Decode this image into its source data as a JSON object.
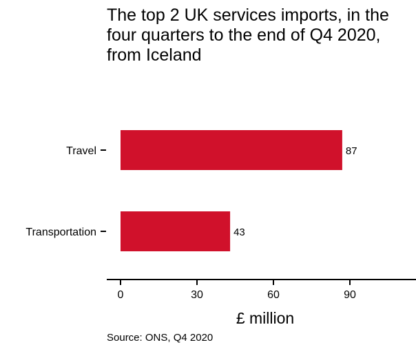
{
  "chart_data": {
    "type": "bar",
    "orientation": "horizontal",
    "title": "The top 2 UK services imports, in the four quarters to the end of Q4 2020, from Iceland",
    "categories": [
      "Travel",
      "Transportation"
    ],
    "values": [
      87,
      43
    ],
    "data_labels": [
      "87",
      "43"
    ],
    "xlabel": "£ million",
    "ylabel": "",
    "xlim": [
      0,
      115
    ],
    "xticks": [
      0,
      30,
      60,
      90
    ],
    "xtick_labels": [
      "0",
      "30",
      "60",
      "90"
    ],
    "bar_color": "#d0112b",
    "grid": false,
    "source": "Source: ONS, Q4 2020"
  }
}
